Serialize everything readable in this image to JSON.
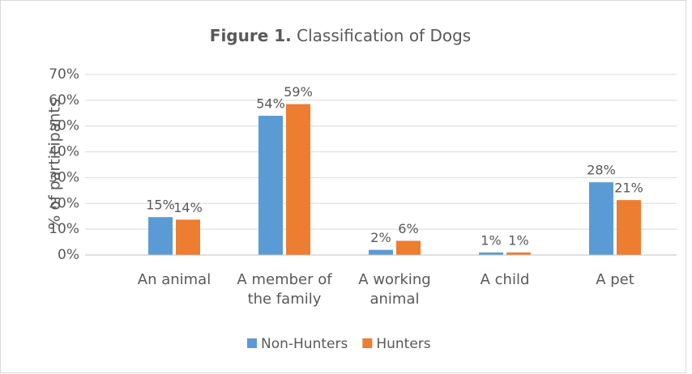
{
  "chart_data": {
    "type": "bar",
    "figure_label": "Figure 1.",
    "title": "Classification of Dogs",
    "y_label": "% of participants",
    "categories": [
      "An animal",
      "A member of the family",
      "A working animal",
      "A child",
      "A pet"
    ],
    "series": [
      {
        "name": "Non-Hunters",
        "color": "#5b9bd5",
        "values": [
          14.7,
          54,
          2,
          1,
          28.2
        ],
        "value_labels": [
          "15%",
          "54%",
          "2%",
          "1%",
          "28%"
        ]
      },
      {
        "name": "Hunters",
        "color": "#ed7d31",
        "values": [
          13.7,
          58.5,
          5.5,
          1,
          21.3
        ],
        "value_labels": [
          "14%",
          "59%",
          "6%",
          "1%",
          "21%"
        ]
      }
    ],
    "ylim": [
      0,
      70
    ],
    "yticks": [
      {
        "value": 0,
        "label": "0%"
      },
      {
        "value": 10,
        "label": "10%"
      },
      {
        "value": 20,
        "label": "20%"
      },
      {
        "value": 30,
        "label": "30%"
      },
      {
        "value": 40,
        "label": "40%"
      },
      {
        "value": 50,
        "label": "50%"
      },
      {
        "value": 60,
        "label": "60%"
      },
      {
        "value": 70,
        "label": "70%"
      }
    ],
    "grid": true,
    "legend": "bottom"
  }
}
